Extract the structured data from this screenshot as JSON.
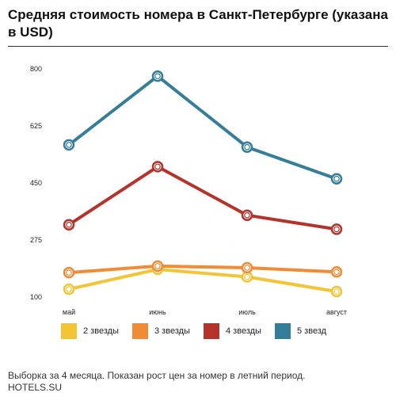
{
  "title": "Средняя стоимость номера в Санкт-Петербурге (указана в USD)",
  "footer": {
    "note": "Выборка за 4 месяца. Показан рост цен за номер в летний период.",
    "source": "HOTELS.SU"
  },
  "chart_data": {
    "type": "line",
    "title": "Средняя стоимость номера в Санкт-Петербурге (указана в USD)",
    "xlabel": "",
    "ylabel": "",
    "categories": [
      "май",
      "июнь",
      "июль",
      "август"
    ],
    "ylim": [
      100,
      800
    ],
    "yticks": [
      100,
      275,
      450,
      625,
      800
    ],
    "grid": false,
    "legend_position": "bottom",
    "series": [
      {
        "name": "2 звезды",
        "color": "#f3c534",
        "values": [
          124,
          185,
          162,
          117
        ]
      },
      {
        "name": "3 звезды",
        "color": "#f08c35",
        "values": [
          175,
          195,
          190,
          177
        ]
      },
      {
        "name": "4 звезды",
        "color": "#b5332a",
        "values": [
          322,
          500,
          351,
          308
        ]
      },
      {
        "name": "5 звезд",
        "color": "#357e9a",
        "values": [
          567,
          778,
          560,
          463
        ]
      }
    ]
  }
}
